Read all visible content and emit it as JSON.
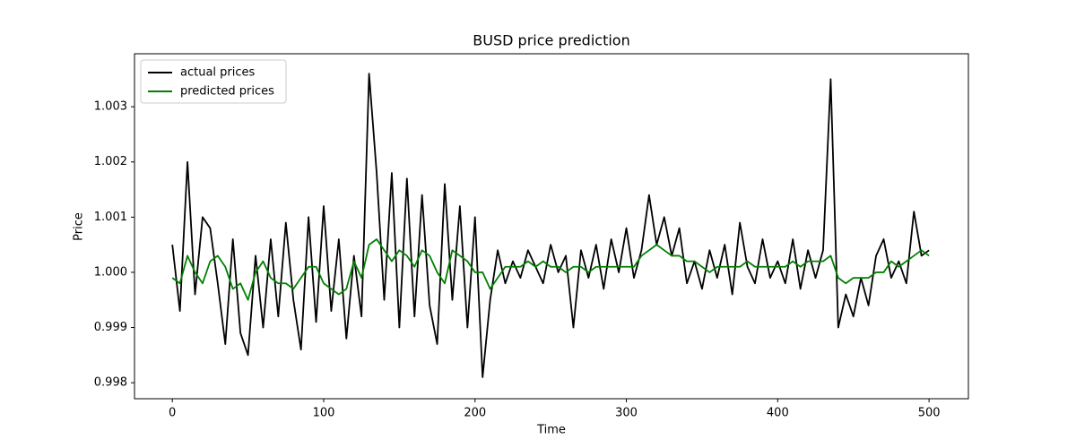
{
  "chart_data": {
    "type": "line",
    "title": "BUSD price prediction",
    "x_label": "Time",
    "y_label": "Price",
    "x": [
      0,
      5,
      10,
      15,
      20,
      25,
      30,
      35,
      40,
      45,
      50,
      55,
      60,
      65,
      70,
      75,
      80,
      85,
      90,
      95,
      100,
      105,
      110,
      115,
      120,
      125,
      130,
      135,
      140,
      145,
      150,
      155,
      160,
      165,
      170,
      175,
      180,
      185,
      190,
      195,
      200,
      205,
      210,
      215,
      220,
      225,
      230,
      235,
      240,
      245,
      250,
      255,
      260,
      265,
      270,
      275,
      280,
      285,
      290,
      295,
      300,
      305,
      310,
      315,
      320,
      325,
      330,
      335,
      340,
      345,
      350,
      355,
      360,
      365,
      370,
      375,
      380,
      385,
      390,
      395,
      400,
      405,
      410,
      415,
      420,
      425,
      430,
      435,
      440,
      445,
      450,
      455,
      460,
      465,
      470,
      475,
      480,
      485,
      490,
      495,
      500
    ],
    "series": [
      {
        "name": "actual prices",
        "color": "#000000",
        "values": [
          1.0005,
          0.9993,
          1.002,
          0.9996,
          1.001,
          1.0008,
          0.9998,
          0.9987,
          1.0006,
          0.9989,
          0.9985,
          1.0003,
          0.999,
          1.0006,
          0.9992,
          1.0009,
          0.9995,
          0.9986,
          1.001,
          0.9991,
          1.0012,
          0.9993,
          1.0006,
          0.9988,
          1.0003,
          0.9992,
          1.0036,
          1.0018,
          0.9995,
          1.0018,
          0.999,
          1.0017,
          0.9992,
          1.0014,
          0.9994,
          0.9987,
          1.0016,
          0.9995,
          1.0012,
          0.999,
          1.001,
          0.9981,
          0.9995,
          1.0004,
          0.9998,
          1.0002,
          0.9999,
          1.0004,
          1.0001,
          0.9998,
          1.0005,
          1.0,
          1.0003,
          0.999,
          1.0004,
          0.9999,
          1.0005,
          0.9997,
          1.0006,
          1.0,
          1.0008,
          0.9999,
          1.0004,
          1.0014,
          1.0005,
          1.001,
          1.0003,
          1.0008,
          0.9998,
          1.0002,
          0.9997,
          1.0004,
          0.9999,
          1.0005,
          0.9996,
          1.0009,
          1.0001,
          0.9998,
          1.0006,
          0.9999,
          1.0002,
          0.9998,
          1.0006,
          0.9997,
          1.0004,
          0.9999,
          1.0004,
          1.0035,
          0.999,
          0.9996,
          0.9992,
          0.9999,
          0.9994,
          1.0003,
          1.0006,
          0.9999,
          1.0002,
          0.9998,
          1.0011,
          1.0003,
          1.0004
        ]
      },
      {
        "name": "predicted prices",
        "color": "#008000",
        "values": [
          0.9999,
          0.9998,
          1.0003,
          1.0,
          0.9998,
          1.0002,
          1.0003,
          1.0001,
          0.9997,
          0.9998,
          0.9995,
          1.0,
          1.0002,
          0.9999,
          0.9998,
          0.9998,
          0.9997,
          0.9999,
          1.0001,
          1.0001,
          0.9998,
          0.9997,
          0.9996,
          0.9997,
          1.0002,
          0.9999,
          1.0005,
          1.0006,
          1.0004,
          1.0002,
          1.0004,
          1.0003,
          1.0001,
          1.0004,
          1.0003,
          1.0,
          0.9998,
          1.0004,
          1.0003,
          1.0002,
          1.0,
          1.0,
          0.9997,
          0.9999,
          1.0001,
          1.0001,
          1.0001,
          1.0002,
          1.0001,
          1.0002,
          1.0001,
          1.0001,
          1.0,
          1.0001,
          1.0001,
          1.0,
          1.0001,
          1.0001,
          1.0001,
          1.0001,
          1.0001,
          1.0001,
          1.0003,
          1.0004,
          1.0005,
          1.0004,
          1.0003,
          1.0003,
          1.0002,
          1.0002,
          1.0001,
          1.0,
          1.0001,
          1.0001,
          1.0001,
          1.0001,
          1.0002,
          1.0001,
          1.0001,
          1.0001,
          1.0001,
          1.0001,
          1.0002,
          1.0001,
          1.0002,
          1.0002,
          1.0002,
          1.0003,
          0.9999,
          0.9998,
          0.9999,
          0.9999,
          0.9999,
          1.0,
          1.0,
          1.0002,
          1.0001,
          1.0002,
          1.0003,
          1.0004,
          1.0003
        ]
      }
    ],
    "xlim": [
      -25,
      526
    ],
    "ylim": [
      0.99771,
      1.00396
    ],
    "xticks": [
      0,
      100,
      200,
      300,
      400,
      500
    ],
    "yticks": [
      0.998,
      0.999,
      {
        "value": 1,
        "label": "1.000"
      },
      1.001,
      1.002,
      1.003
    ],
    "legend": "upper left"
  }
}
